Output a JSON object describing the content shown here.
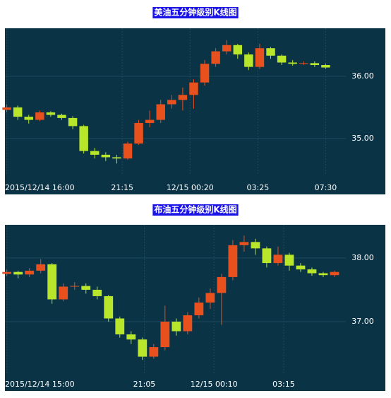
{
  "chart_data": [
    {
      "type": "candlestick",
      "title": "美油五分钟级别K线图",
      "x": [
        0,
        6,
        12,
        18,
        24,
        30,
        36,
        42,
        48,
        54,
        60,
        66,
        72,
        78,
        84,
        90,
        96,
        102,
        108,
        114,
        120,
        126,
        132,
        138,
        144,
        150,
        156,
        162,
        168,
        174
      ],
      "open": [
        35.46,
        35.5,
        35.35,
        35.3,
        35.42,
        35.38,
        35.33,
        35.2,
        34.8,
        34.74,
        34.7,
        34.68,
        34.92,
        35.25,
        35.3,
        35.55,
        35.62,
        35.7,
        35.9,
        36.2,
        36.4,
        36.5,
        36.35,
        36.15,
        36.45,
        36.33,
        36.22,
        36.2,
        36.21,
        36.18
      ],
      "high": [
        35.55,
        35.53,
        35.38,
        35.45,
        35.44,
        35.4,
        35.36,
        35.22,
        34.85,
        34.78,
        34.74,
        34.95,
        35.3,
        35.45,
        35.62,
        35.7,
        35.82,
        35.95,
        36.26,
        36.45,
        36.58,
        36.52,
        36.38,
        36.52,
        36.47,
        36.35,
        36.26,
        36.24,
        36.24,
        36.2
      ],
      "low": [
        35.42,
        35.3,
        35.24,
        35.28,
        35.35,
        35.3,
        35.15,
        34.76,
        34.68,
        34.64,
        34.6,
        34.66,
        34.9,
        35.18,
        35.25,
        35.48,
        35.45,
        35.48,
        35.85,
        36.15,
        36.35,
        36.28,
        36.1,
        36.12,
        36.28,
        36.18,
        36.17,
        36.18,
        36.15,
        36.12
      ],
      "close": [
        35.5,
        35.35,
        35.3,
        35.42,
        35.38,
        35.33,
        35.2,
        34.8,
        34.74,
        34.7,
        34.68,
        34.92,
        35.25,
        35.3,
        35.55,
        35.62,
        35.7,
        35.9,
        36.2,
        36.4,
        36.5,
        36.35,
        36.15,
        36.45,
        36.33,
        36.22,
        36.2,
        36.21,
        36.18,
        36.14
      ],
      "xlim": [
        -1,
        185
      ],
      "xticks": [
        {
          "value": 0,
          "label": "2015/12/14 16:00"
        },
        {
          "value": 63,
          "label": "21:15"
        },
        {
          "value": 100,
          "label": "12/15 00:20"
        },
        {
          "value": 137,
          "label": "03:25"
        },
        {
          "value": 174,
          "label": "07:30"
        }
      ],
      "ylim": [
        34.41,
        36.77
      ],
      "yticks": [
        {
          "value": 35,
          "label": "35.00"
        },
        {
          "value": 36,
          "label": "36.00"
        }
      ],
      "up_color": "#e8501e",
      "down_color": "#b8e62a",
      "grid": true
    },
    {
      "type": "candlestick",
      "title": "布油五分钟级别K线图",
      "x": [
        0,
        6,
        12,
        18,
        24,
        30,
        36,
        42,
        48,
        54,
        60,
        66,
        72,
        78,
        84,
        90,
        96,
        102,
        108,
        114,
        120,
        126,
        132,
        138,
        144,
        150,
        156,
        162,
        168,
        174
      ],
      "open": [
        37.75,
        37.78,
        37.74,
        37.8,
        37.9,
        37.35,
        37.55,
        37.56,
        37.5,
        37.4,
        37.05,
        36.8,
        36.72,
        36.45,
        36.6,
        37.0,
        36.85,
        37.1,
        37.3,
        37.45,
        37.7,
        38.2,
        38.25,
        38.15,
        37.92,
        38.05,
        37.88,
        37.82,
        37.76,
        37.73
      ],
      "high": [
        37.82,
        37.8,
        37.84,
        37.98,
        37.92,
        37.6,
        37.62,
        37.6,
        37.55,
        37.42,
        37.08,
        36.85,
        36.75,
        36.65,
        37.25,
        37.05,
        37.15,
        37.38,
        37.52,
        37.75,
        38.28,
        38.35,
        38.3,
        38.18,
        38.18,
        38.08,
        37.92,
        37.85,
        37.78,
        37.8
      ],
      "low": [
        37.72,
        37.68,
        37.7,
        37.76,
        37.28,
        37.32,
        37.5,
        37.44,
        37.35,
        37.0,
        36.75,
        36.65,
        36.4,
        36.42,
        36.55,
        36.78,
        36.8,
        37.05,
        37.2,
        36.95,
        37.65,
        38.1,
        38.05,
        37.85,
        37.88,
        37.8,
        37.78,
        37.72,
        37.7,
        37.7
      ],
      "close": [
        37.78,
        37.74,
        37.8,
        37.9,
        37.35,
        37.55,
        37.56,
        37.5,
        37.4,
        37.05,
        36.8,
        36.72,
        36.45,
        36.6,
        37.0,
        36.85,
        37.1,
        37.3,
        37.45,
        37.7,
        38.2,
        38.25,
        38.15,
        37.92,
        38.05,
        37.88,
        37.82,
        37.76,
        37.73,
        37.78
      ],
      "xlim": [
        -1,
        180
      ],
      "xticks": [
        {
          "value": 0,
          "label": "2015/12/14 15:00"
        },
        {
          "value": 73,
          "label": "21:05"
        },
        {
          "value": 110,
          "label": "12/15 00:10"
        },
        {
          "value": 147,
          "label": "03:15"
        }
      ],
      "ylim": [
        36.19,
        38.52
      ],
      "yticks": [
        {
          "value": 37,
          "label": "37.00"
        },
        {
          "value": 38,
          "label": "38.00"
        }
      ],
      "up_color": "#e8501e",
      "down_color": "#b8e62a",
      "grid": true
    }
  ]
}
